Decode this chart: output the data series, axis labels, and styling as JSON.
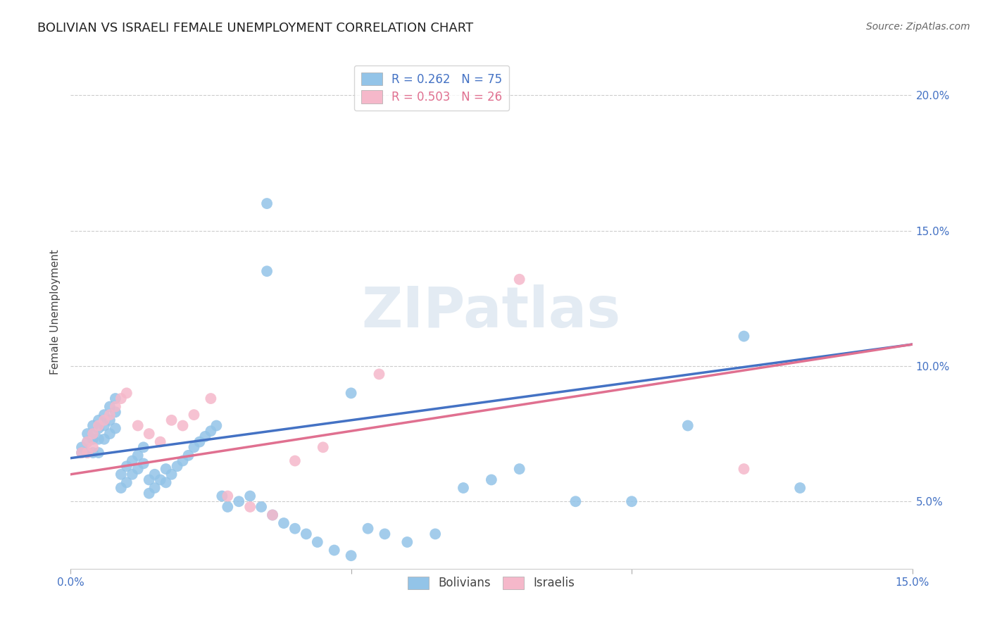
{
  "title": "BOLIVIAN VS ISRAELI FEMALE UNEMPLOYMENT CORRELATION CHART",
  "source": "Source: ZipAtlas.com",
  "ylabel": "Female Unemployment",
  "xlim": [
    0.0,
    0.15
  ],
  "ylim": [
    0.025,
    0.215
  ],
  "xticks": [
    0.0,
    0.05,
    0.1,
    0.15
  ],
  "xtick_labels": [
    "0.0%",
    "",
    "",
    "15.0%"
  ],
  "yticks": [
    0.05,
    0.1,
    0.15,
    0.2
  ],
  "ytick_labels": [
    "5.0%",
    "10.0%",
    "15.0%",
    "20.0%"
  ],
  "background_color": "#ffffff",
  "grid_color": "#cccccc",
  "legend_R_blue": "0.262",
  "legend_N_blue": "75",
  "legend_R_pink": "0.503",
  "legend_N_pink": "26",
  "blue_color": "#93c4e8",
  "pink_color": "#f5b8ca",
  "blue_line_color": "#4472c4",
  "pink_line_color": "#e07090",
  "watermark": "ZIPatlas",
  "blue_line_x0": 0.0,
  "blue_line_y0": 0.066,
  "blue_line_x1": 0.15,
  "blue_line_y1": 0.108,
  "pink_line_x0": 0.0,
  "pink_line_y0": 0.06,
  "pink_line_x1": 0.15,
  "pink_line_y1": 0.108,
  "blue_scatter_x": [
    0.002,
    0.002,
    0.003,
    0.003,
    0.003,
    0.004,
    0.004,
    0.004,
    0.004,
    0.005,
    0.005,
    0.005,
    0.005,
    0.006,
    0.006,
    0.006,
    0.007,
    0.007,
    0.007,
    0.008,
    0.008,
    0.008,
    0.009,
    0.009,
    0.01,
    0.01,
    0.011,
    0.011,
    0.012,
    0.012,
    0.013,
    0.013,
    0.014,
    0.014,
    0.015,
    0.015,
    0.016,
    0.017,
    0.017,
    0.018,
    0.019,
    0.02,
    0.021,
    0.022,
    0.023,
    0.024,
    0.025,
    0.026,
    0.027,
    0.028,
    0.03,
    0.032,
    0.034,
    0.036,
    0.038,
    0.04,
    0.042,
    0.044,
    0.047,
    0.05,
    0.053,
    0.056,
    0.06,
    0.065,
    0.07,
    0.075,
    0.08,
    0.09,
    0.1,
    0.11,
    0.12,
    0.13,
    0.035,
    0.035,
    0.05
  ],
  "blue_scatter_y": [
    0.07,
    0.068,
    0.075,
    0.072,
    0.068,
    0.078,
    0.075,
    0.073,
    0.068,
    0.08,
    0.077,
    0.073,
    0.068,
    0.082,
    0.078,
    0.073,
    0.085,
    0.08,
    0.075,
    0.088,
    0.083,
    0.077,
    0.06,
    0.055,
    0.063,
    0.057,
    0.065,
    0.06,
    0.067,
    0.062,
    0.07,
    0.064,
    0.058,
    0.053,
    0.06,
    0.055,
    0.058,
    0.062,
    0.057,
    0.06,
    0.063,
    0.065,
    0.067,
    0.07,
    0.072,
    0.074,
    0.076,
    0.078,
    0.052,
    0.048,
    0.05,
    0.052,
    0.048,
    0.045,
    0.042,
    0.04,
    0.038,
    0.035,
    0.032,
    0.03,
    0.04,
    0.038,
    0.035,
    0.038,
    0.055,
    0.058,
    0.062,
    0.05,
    0.05,
    0.078,
    0.111,
    0.055,
    0.16,
    0.135,
    0.09
  ],
  "pink_scatter_x": [
    0.002,
    0.003,
    0.003,
    0.004,
    0.004,
    0.005,
    0.006,
    0.007,
    0.008,
    0.009,
    0.01,
    0.012,
    0.014,
    0.016,
    0.018,
    0.02,
    0.022,
    0.025,
    0.028,
    0.032,
    0.036,
    0.04,
    0.045,
    0.055,
    0.08,
    0.12
  ],
  "pink_scatter_y": [
    0.068,
    0.072,
    0.068,
    0.075,
    0.07,
    0.078,
    0.08,
    0.082,
    0.085,
    0.088,
    0.09,
    0.078,
    0.075,
    0.072,
    0.08,
    0.078,
    0.082,
    0.088,
    0.052,
    0.048,
    0.045,
    0.065,
    0.07,
    0.097,
    0.132,
    0.062
  ]
}
